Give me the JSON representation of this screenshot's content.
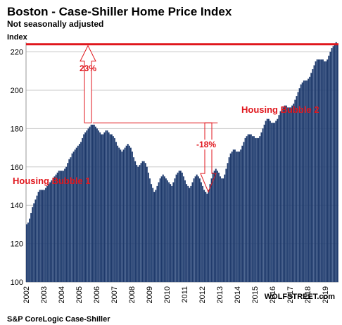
{
  "title": "Boston - Case-Shiller Home Price Index",
  "subtitle": "Not seasonally adjusted",
  "ylabel": "Index",
  "source": "S&P CoreLogic Case-Shiller",
  "brand": "WOLFSTREET.com",
  "colors": {
    "bar": "#1f3a6b",
    "bar_edge": "#3b5a8f",
    "annotation": "#e0161c",
    "grid": "#c8c8c8"
  },
  "annotations": {
    "bubble1": "Housing Bubble 1",
    "bubble2": "Housing Bubble 2",
    "rise": "23%",
    "drop": "-18%"
  },
  "chart_data": {
    "type": "bar",
    "x": {
      "start": "2002-01",
      "end": "2019-09",
      "freq": "monthly"
    },
    "xticks": [
      "2002",
      "2003",
      "2004",
      "2005",
      "2006",
      "2007",
      "2008",
      "2009",
      "2010",
      "2011",
      "2012",
      "2013",
      "2014",
      "2015",
      "2016",
      "2017",
      "2018",
      "2019"
    ],
    "ylim": [
      100,
      225
    ],
    "yticks": [
      100,
      120,
      140,
      160,
      180,
      200,
      220
    ],
    "grid": true,
    "reference_line": 224,
    "yearly_values": [
      [
        130,
        131,
        133,
        136,
        139,
        141,
        143,
        145,
        147,
        148,
        148,
        148
      ],
      [
        148,
        149,
        150,
        151,
        152,
        153,
        154,
        155,
        156,
        157,
        158,
        158
      ],
      [
        158,
        158,
        159,
        160,
        162,
        164,
        165,
        167,
        168,
        169,
        170,
        171
      ],
      [
        172,
        173,
        175,
        177,
        178,
        179,
        180,
        181,
        182,
        182,
        182,
        181
      ],
      [
        180,
        179,
        178,
        177,
        177,
        178,
        179,
        179,
        178,
        177,
        177,
        176
      ],
      [
        175,
        173,
        171,
        170,
        169,
        168,
        169,
        170,
        171,
        172,
        171,
        170
      ],
      [
        168,
        165,
        163,
        161,
        160,
        161,
        162,
        163,
        163,
        162,
        160,
        157
      ],
      [
        154,
        151,
        149,
        147,
        148,
        150,
        152,
        154,
        155,
        156,
        155,
        154
      ],
      [
        153,
        152,
        151,
        150,
        152,
        154,
        156,
        157,
        158,
        158,
        157,
        155
      ],
      [
        153,
        151,
        150,
        149,
        150,
        152,
        154,
        155,
        156,
        155,
        154,
        152
      ],
      [
        150,
        148,
        147,
        146,
        148,
        151,
        154,
        157,
        158,
        159,
        158,
        157
      ],
      [
        155,
        154,
        154,
        156,
        159,
        162,
        165,
        167,
        168,
        169,
        169,
        168
      ],
      [
        168,
        168,
        169,
        171,
        173,
        175,
        176,
        177,
        177,
        177,
        176,
        176
      ],
      [
        175,
        175,
        175,
        176,
        178,
        180,
        182,
        184,
        185,
        185,
        184,
        183
      ],
      [
        183,
        183,
        184,
        185,
        187,
        189,
        190,
        191,
        192,
        192,
        191,
        191
      ],
      [
        191,
        192,
        193,
        195,
        197,
        199,
        201,
        203,
        204,
        205,
        205,
        205
      ],
      [
        206,
        207,
        209,
        211,
        213,
        215,
        216,
        216,
        216,
        216,
        216,
        215
      ],
      [
        215,
        216,
        218,
        220,
        222,
        223,
        224,
        225,
        224
      ]
    ]
  }
}
